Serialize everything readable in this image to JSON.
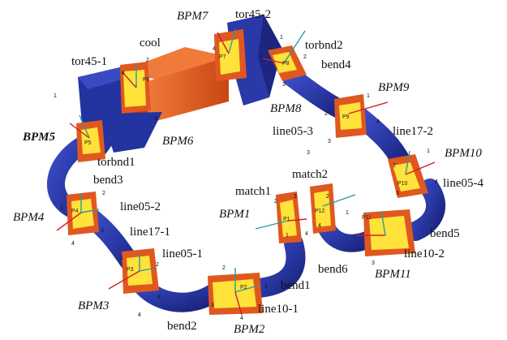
{
  "components": {
    "tor45_1": "tor45-1",
    "cool": "cool",
    "bpm7": "BPM7",
    "tor45_2": "tor45-2",
    "torbnd2": "torbnd2",
    "bend4": "bend4",
    "bpm9": "BPM9",
    "bpm8": "BPM8",
    "line05_3": "line05-3",
    "line17_2": "line17-2",
    "bpm10": "BPM10",
    "line05_4": "line05-4",
    "bpm5": "BPM5",
    "bpm6": "BPM6",
    "torbnd1": "torbnd1",
    "bend3": "bend3",
    "match2": "match2",
    "match1": "match1",
    "bpm4": "BPM4",
    "line05_2": "line05-2",
    "bpm1": "BPM1",
    "line17_1": "line17-1",
    "bend5": "bend5",
    "line05_1": "line05-1",
    "line10_2": "line10-2",
    "bend6": "bend6",
    "bend1": "bend1",
    "bpm11": "BPM11",
    "bpm3": "BPM3",
    "line10_1": "line10-1",
    "bend2": "bend2",
    "bpm2": "BPM2"
  },
  "probe_labels": {
    "p1": "P1",
    "p2": "P2",
    "p3": "P3",
    "p4": "P4",
    "p5": "P5",
    "p6": "P6",
    "p7": "P7",
    "p8": "P8",
    "p9": "P9",
    "p10": "P10",
    "p11": "P11",
    "p12": "P12"
  },
  "port_numbers": {
    "n1": "1",
    "n2": "2",
    "n3": "3",
    "n4": "4"
  },
  "colors": {
    "beam_pipe": "#2b3aa8",
    "magnet_body": "#e0581f",
    "magnet_face": "#ffe23a",
    "axis_red": "#d0202a",
    "axis_teal": "#2a9a9a"
  }
}
